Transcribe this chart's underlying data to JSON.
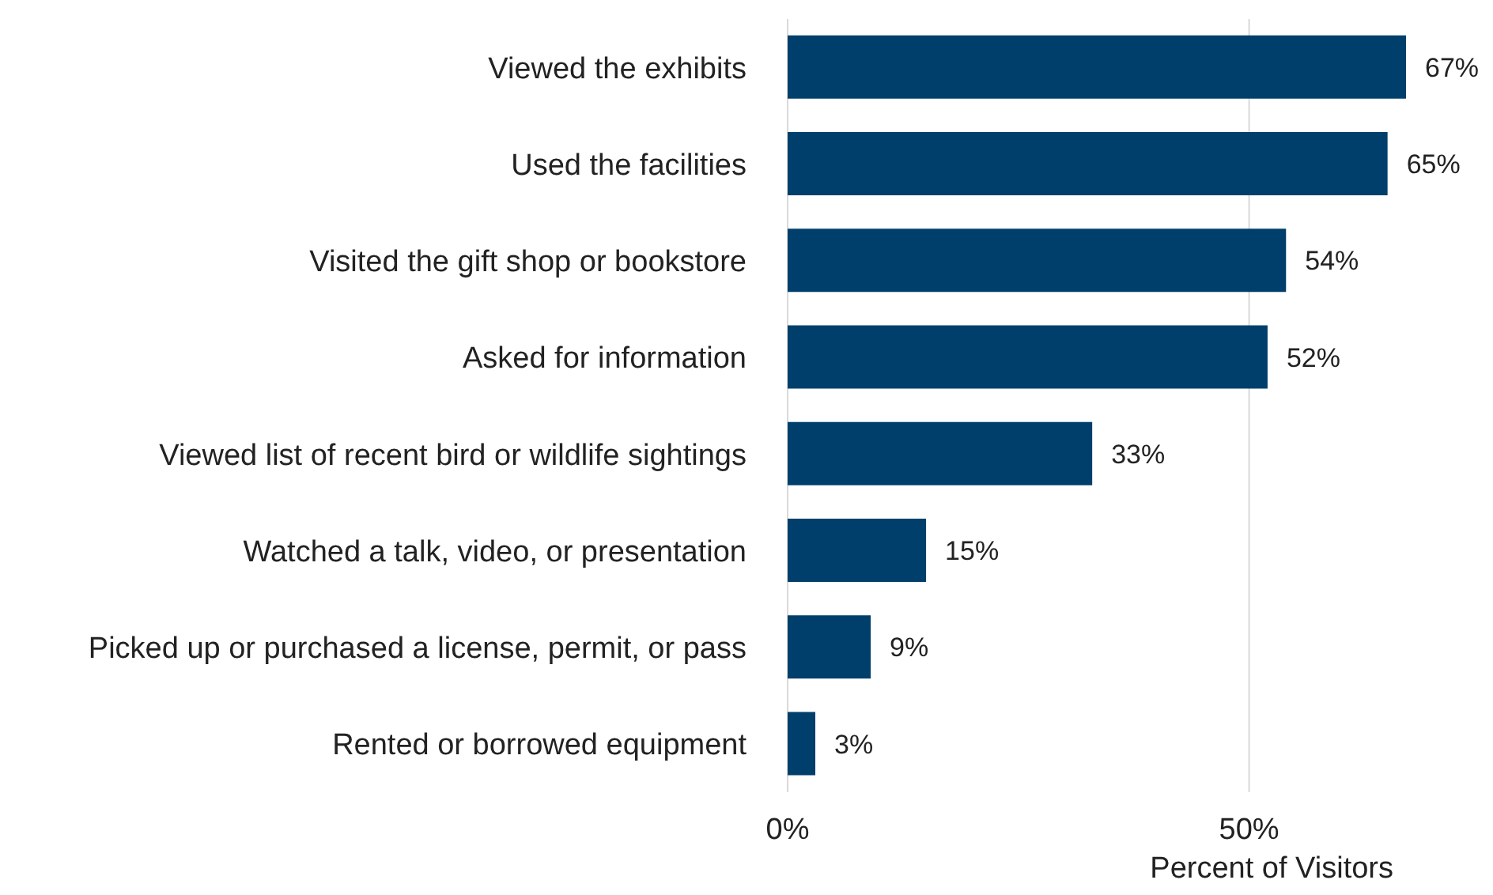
{
  "chart_data": {
    "type": "bar",
    "orientation": "horizontal",
    "xlabel": "Percent of Visitors",
    "categories": [
      "Viewed the exhibits",
      "Used the facilities",
      "Visited the gift shop or bookstore",
      "Asked for information",
      "Viewed list of recent bird or wildlife sightings",
      "Watched a talk, video, or presentation",
      "Picked up or purchased a license, permit, or pass",
      "Rented or borrowed equipment"
    ],
    "values": [
      67,
      65,
      54,
      52,
      33,
      15,
      9,
      3
    ],
    "value_labels": [
      "67%",
      "65%",
      "54%",
      "52%",
      "33%",
      "15%",
      "9%",
      "3%"
    ],
    "color": "#003f6b",
    "xlim": [
      0,
      67
    ],
    "xticks": [
      {
        "value": 0,
        "label": "0%"
      },
      {
        "value": 50,
        "label": "50%"
      }
    ],
    "grid": "x",
    "legend": false
  }
}
